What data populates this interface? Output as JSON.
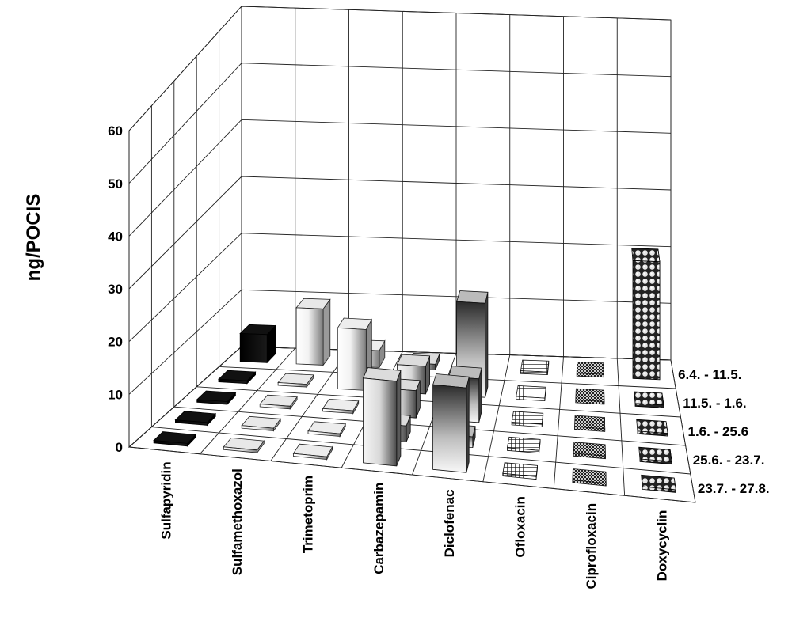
{
  "chart_data": {
    "type": "bar",
    "ylabel": "ng/POCIS",
    "ylim": [
      0,
      60
    ],
    "yticks": [
      "0",
      "10",
      "20",
      "30",
      "40",
      "50",
      "60"
    ],
    "categories": [
      "Sulfapyridin",
      "Sulfamethoxazol",
      "Trimetoprim",
      "Carbazepamin",
      "Diclofenac",
      "Ofloxacin",
      "Ciprofloxacin",
      "Doxycyclin"
    ],
    "periods": [
      "6.4. - 11.5.",
      "11.5. - 1.6.",
      "1.6. - 25.6",
      "25.6. - 23.7.",
      "23.7. - 27.8."
    ],
    "grid": true,
    "values": [
      [
        5,
        10,
        3,
        1,
        0,
        0.5,
        0.5,
        21
      ],
      [
        0.5,
        0.5,
        11,
        5,
        17,
        0.5,
        0.5,
        0.5
      ],
      [
        0.5,
        0.5,
        0.5,
        5,
        8,
        0.5,
        0.5,
        0.5
      ],
      [
        0.5,
        0.5,
        0.5,
        3,
        2,
        0.5,
        0.5,
        0.5
      ],
      [
        0.5,
        0.5,
        0.5,
        16,
        16,
        0.5,
        0.5,
        0.5
      ]
    ]
  }
}
